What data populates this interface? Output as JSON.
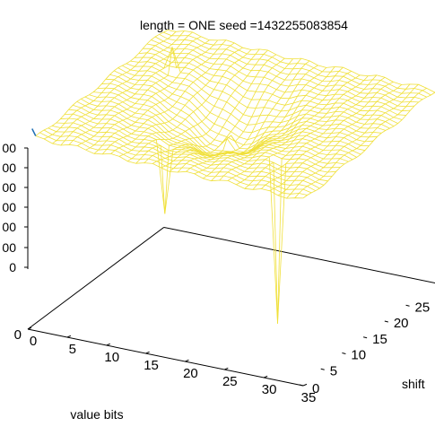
{
  "chart_data": {
    "type": "surface",
    "title": "length = ONE   seed =1432255083854",
    "xlabel": "value bits",
    "ylabel": "shift",
    "zlabel": "",
    "x_ticks": [
      0,
      5,
      10,
      15,
      20,
      25,
      30,
      35
    ],
    "y_ticks": [
      0,
      5,
      10,
      15,
      20,
      25
    ],
    "z_ticks": [
      "00",
      "00",
      "00",
      "00",
      "00",
      "00",
      "0"
    ],
    "x_range": [
      0,
      35
    ],
    "y_range": [
      0,
      32
    ],
    "z_range": [
      0,
      1
    ],
    "grid": {
      "nx": 33,
      "ny": 33
    },
    "surface": {
      "base_level": 0.86,
      "far_corner_level": 0.97,
      "near_edge_level": 0.88,
      "valley": {
        "x": 17,
        "y": 16,
        "depth": 0.18
      },
      "spikes": [
        {
          "x": 17,
          "y": 16,
          "value": 0.8
        },
        {
          "x": 6,
          "y": 22,
          "value": 1.05
        },
        {
          "x": 28,
          "y": 8,
          "value": 0.12
        },
        {
          "x": 14,
          "y": 7,
          "value": 0.55
        }
      ]
    },
    "colors": {
      "surface": "#f0e03a",
      "edge_highlight": "#1f6fb5",
      "axes": "#000000"
    }
  }
}
